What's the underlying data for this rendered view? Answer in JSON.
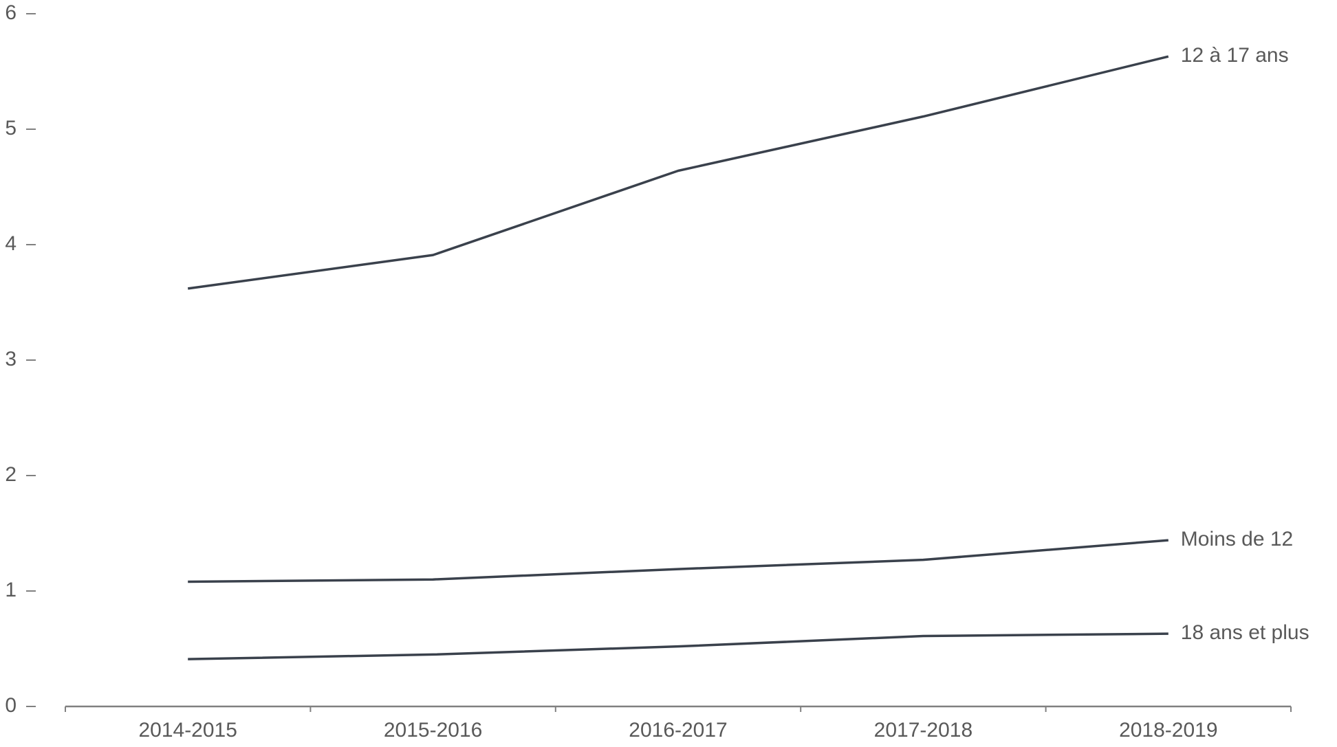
{
  "chart_data": {
    "type": "line",
    "categories": [
      "2014-2015",
      "2015-2016",
      "2016-2017",
      "2017-2018",
      "2018-2019"
    ],
    "series": [
      {
        "name": "12 à 17 ans",
        "color": "#3a414c",
        "values": [
          3.62,
          3.91,
          4.64,
          5.11,
          5.63
        ]
      },
      {
        "name": "Moins de 12",
        "color": "#3a414c",
        "values": [
          1.08,
          1.1,
          1.19,
          1.27,
          1.44
        ]
      },
      {
        "name": "18 ans et plus",
        "color": "#3a414c",
        "values": [
          0.41,
          0.45,
          0.52,
          0.61,
          0.63
        ]
      }
    ],
    "ylim": [
      0,
      6
    ],
    "yticks": [
      0,
      1,
      2,
      3,
      4,
      5,
      6
    ],
    "grid": false
  }
}
